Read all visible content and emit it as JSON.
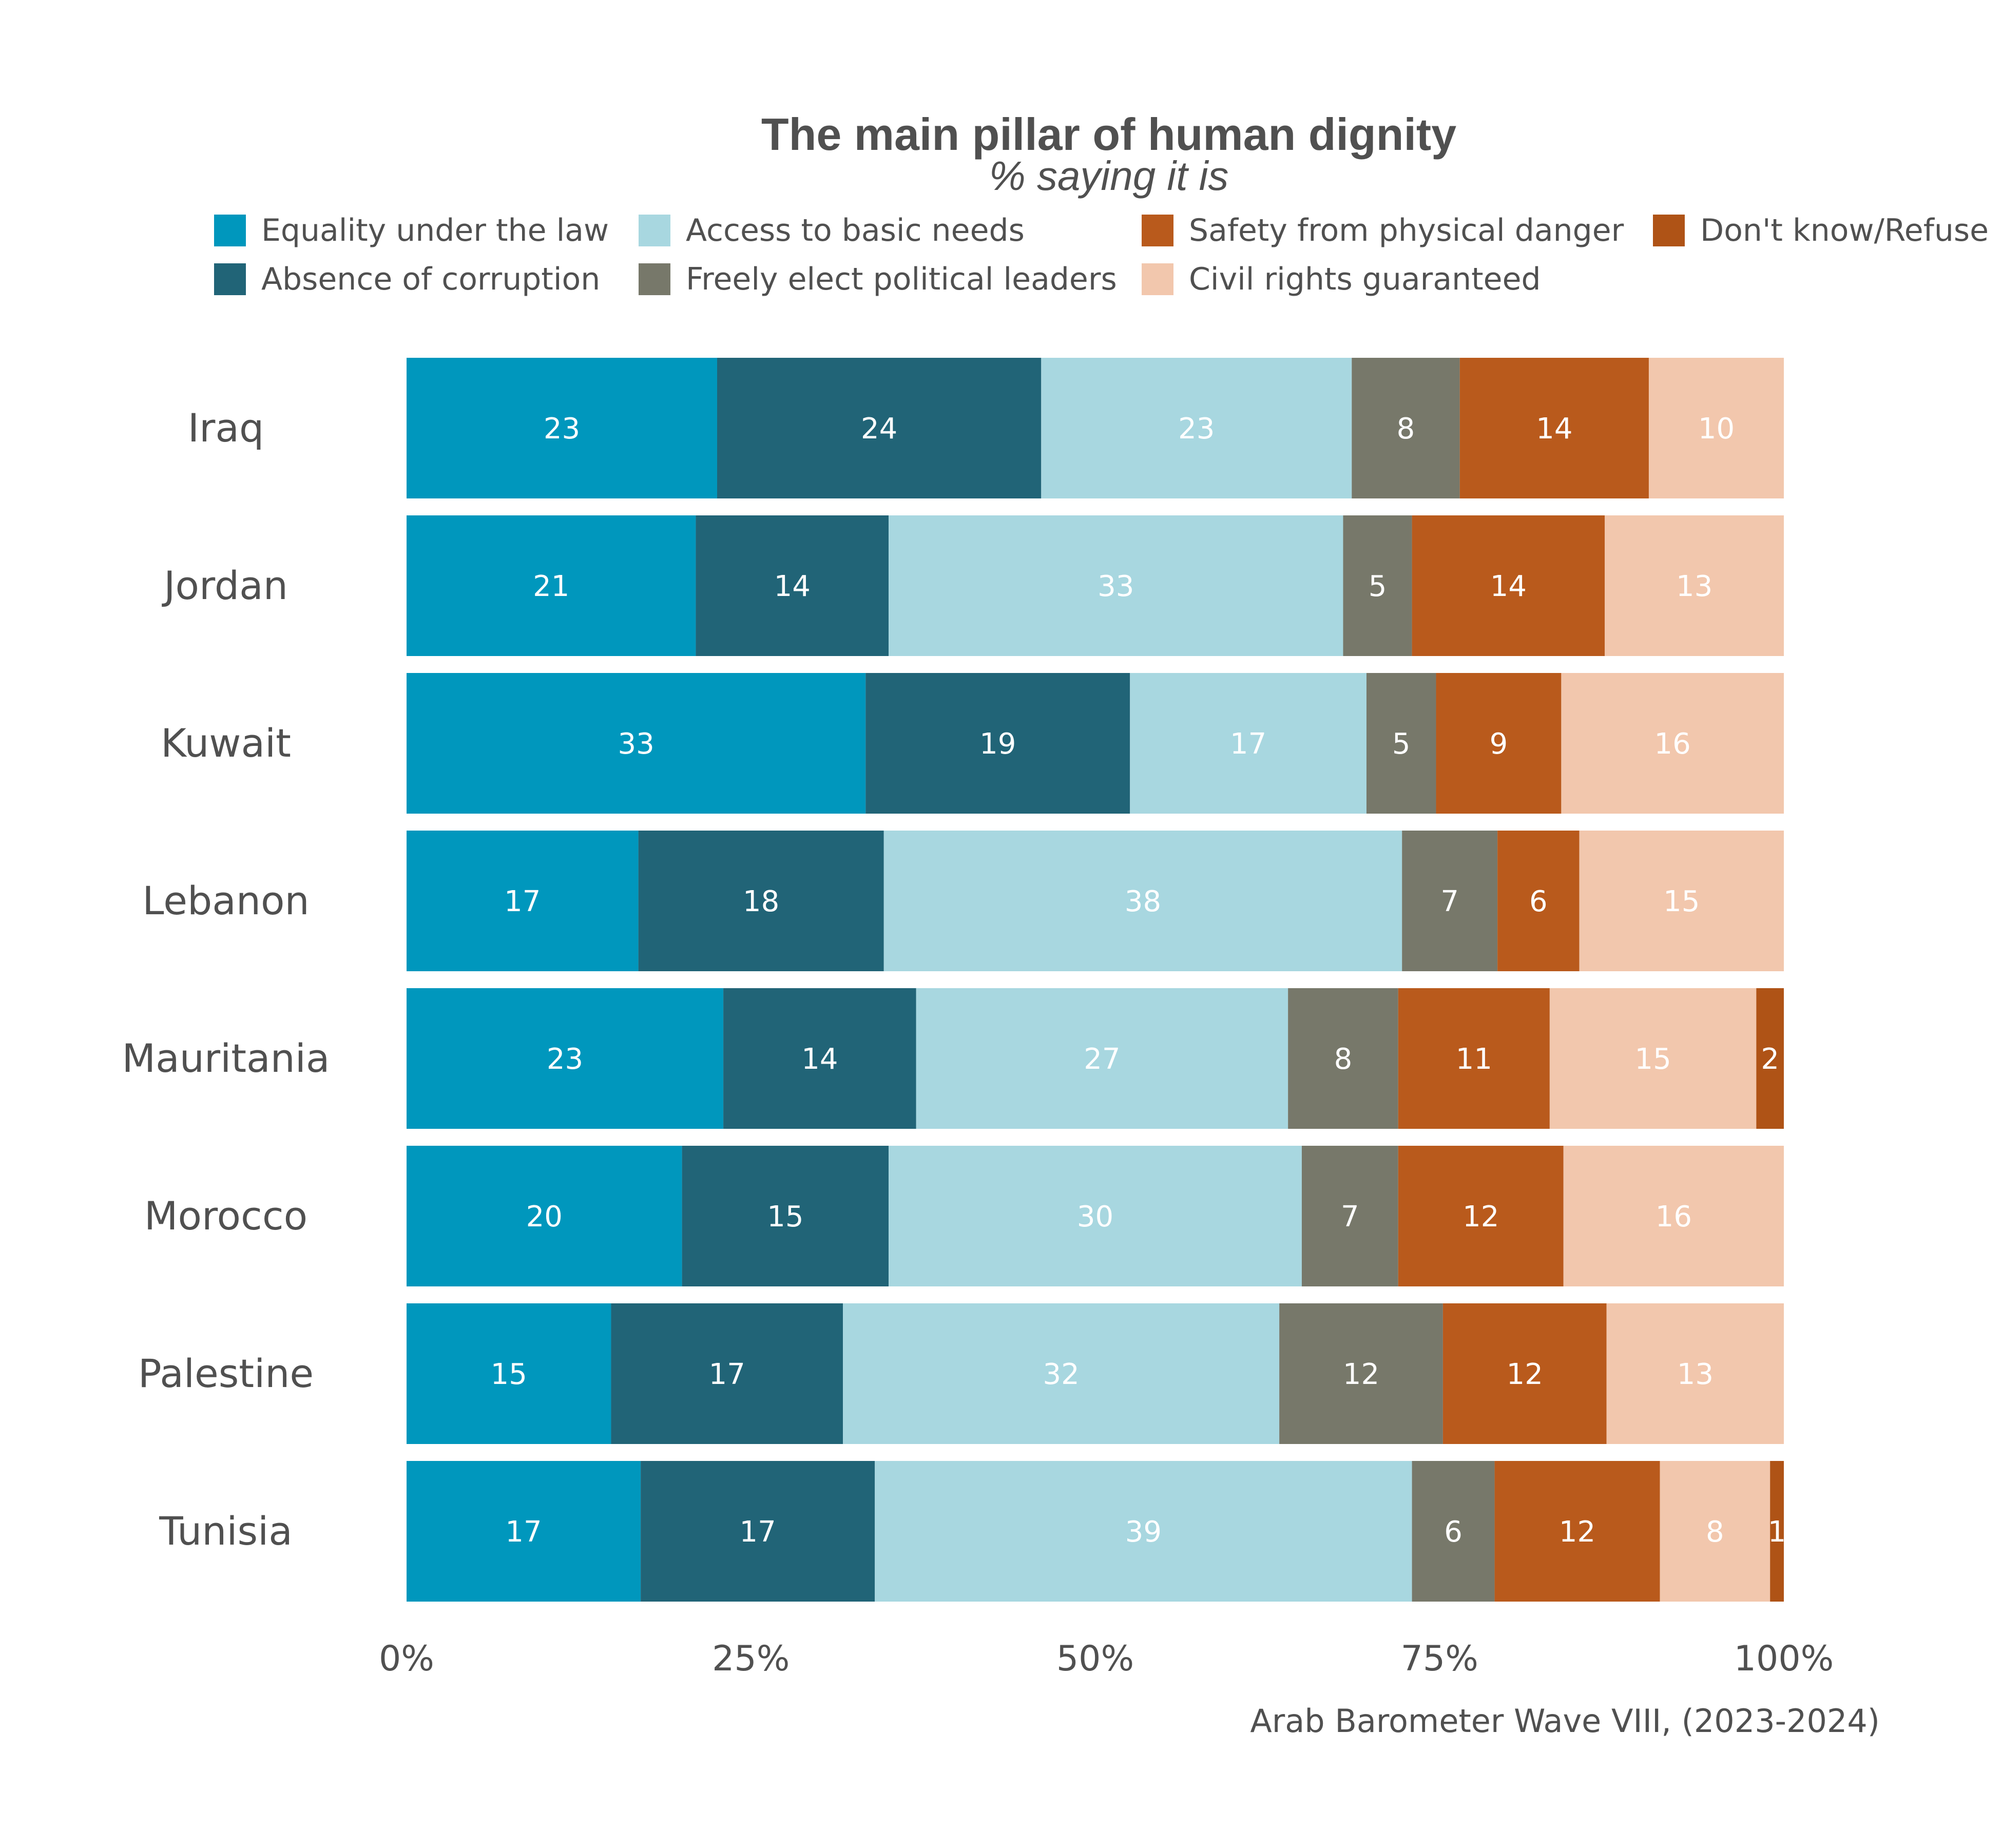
{
  "chart_data": {
    "type": "bar",
    "orientation": "horizontal",
    "stacked": true,
    "title": "The main pillar of human dignity",
    "subtitle": "% saying it is",
    "caption": "Arab Barometer Wave VIII, (2023-2024)",
    "xlabel": "",
    "ylabel": "",
    "xlim": [
      0,
      100
    ],
    "x_ticks": [
      "0%",
      "25%",
      "50%",
      "75%",
      "100%"
    ],
    "grid": false,
    "legend_position": "top",
    "categories": [
      "Iraq",
      "Jordan",
      "Kuwait",
      "Lebanon",
      "Mauritania",
      "Morocco",
      "Palestine",
      "Tunisia"
    ],
    "series": [
      {
        "name": "Equality under the law",
        "color": "#0097BD",
        "values": [
          23,
          21,
          33,
          17,
          23,
          20,
          15,
          17
        ]
      },
      {
        "name": "Absence of corruption",
        "color": "#216477",
        "values": [
          24,
          14,
          19,
          18,
          14,
          15,
          17,
          17
        ]
      },
      {
        "name": "Access to basic needs",
        "color": "#A8D7E0",
        "values": [
          23,
          33,
          17,
          38,
          27,
          30,
          32,
          39
        ]
      },
      {
        "name": "Freely elect political leaders",
        "color": "#77786A",
        "values": [
          8,
          5,
          5,
          7,
          8,
          7,
          12,
          6
        ]
      },
      {
        "name": "Safety from physical danger",
        "color": "#B95A1C",
        "values": [
          14,
          14,
          9,
          6,
          11,
          12,
          12,
          12
        ]
      },
      {
        "name": "Civil rights guaranteed",
        "color": "#F2C7AD",
        "values": [
          10,
          13,
          16,
          15,
          15,
          16,
          13,
          8
        ]
      },
      {
        "name": "Don't know/Refuse",
        "color": "#AF5316",
        "values": [
          null,
          null,
          null,
          null,
          2,
          null,
          null,
          1
        ]
      }
    ],
    "legend": {
      "rows": [
        [
          "Equality under the law",
          "Access to basic needs",
          "Safety from physical danger",
          "Don't know/Refuse"
        ],
        [
          "Absence of corruption",
          "Freely elect political leaders",
          "Civil rights guaranteed"
        ]
      ]
    }
  }
}
